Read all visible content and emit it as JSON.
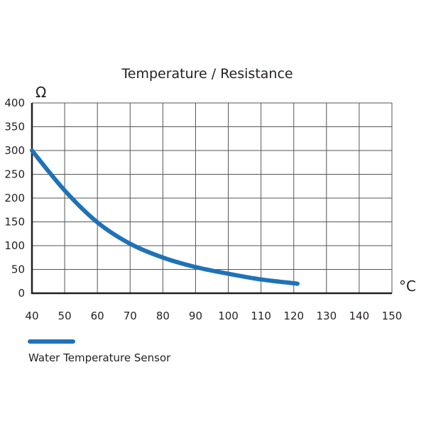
{
  "chart_data": {
    "type": "line",
    "title": "Temperature / Resistance",
    "xlabel": "°C",
    "ylabel": "Ω",
    "xlim": [
      40,
      150
    ],
    "ylim": [
      0,
      400
    ],
    "xticks": [
      40,
      50,
      60,
      70,
      80,
      90,
      100,
      110,
      120,
      130,
      140,
      150
    ],
    "yticks": [
      0,
      50,
      100,
      150,
      200,
      250,
      300,
      350,
      400
    ],
    "grid": true,
    "legend_placement": "bottom-left",
    "series": [
      {
        "name": "Water Temperature Sensor",
        "color": "#1f72b8",
        "x": [
          40,
          50,
          60,
          70,
          80,
          90,
          100,
          110,
          120,
          121
        ],
        "y": [
          300,
          216,
          149,
          104,
          75,
          55,
          41,
          29,
          21,
          20
        ]
      }
    ]
  }
}
